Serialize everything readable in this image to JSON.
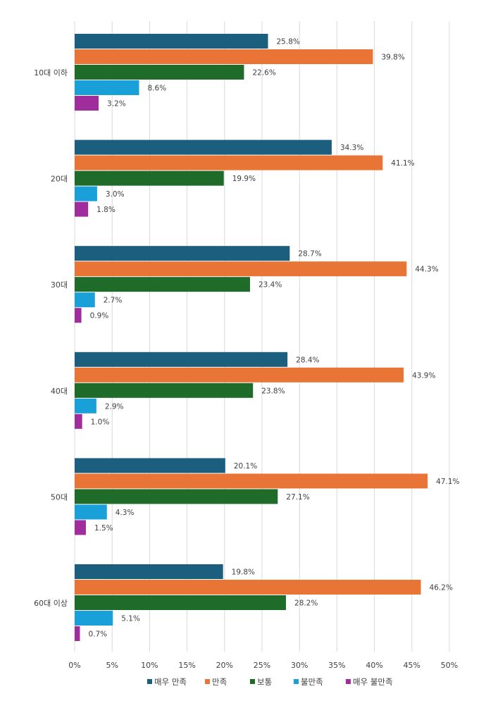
{
  "chart_data": {
    "type": "bar",
    "orientation": "horizontal",
    "title": "",
    "xlabel": "",
    "ylabel": "",
    "xlim": [
      0,
      50
    ],
    "x_ticks": [
      "0%",
      "5%",
      "10%",
      "15%",
      "20%",
      "25%",
      "30%",
      "35%",
      "40%",
      "45%",
      "50%"
    ],
    "x_tick_values": [
      0,
      5,
      10,
      15,
      20,
      25,
      30,
      35,
      40,
      45,
      50
    ],
    "grid": "vertical",
    "legend_position": "bottom",
    "value_suffix": "%",
    "categories": [
      "10대 이하",
      "20대",
      "30대",
      "40대",
      "50대",
      "60대 이상"
    ],
    "series": [
      {
        "name": "매우 만족",
        "color": "#1b5e7e",
        "values": [
          25.8,
          34.3,
          28.7,
          28.4,
          20.1,
          19.8
        ]
      },
      {
        "name": "만족",
        "color": "#e87435",
        "values": [
          39.8,
          41.1,
          44.3,
          43.9,
          47.1,
          46.2
        ]
      },
      {
        "name": "보통",
        "color": "#1e6b2a",
        "values": [
          22.6,
          19.9,
          23.4,
          23.8,
          27.1,
          28.2
        ]
      },
      {
        "name": "불만족",
        "color": "#1aa0d8",
        "values": [
          8.6,
          3.0,
          2.7,
          2.9,
          4.3,
          5.1
        ]
      },
      {
        "name": "매우 불만족",
        "color": "#a02d9c",
        "values": [
          3.2,
          1.8,
          0.9,
          1.0,
          1.5,
          0.7
        ]
      }
    ]
  }
}
